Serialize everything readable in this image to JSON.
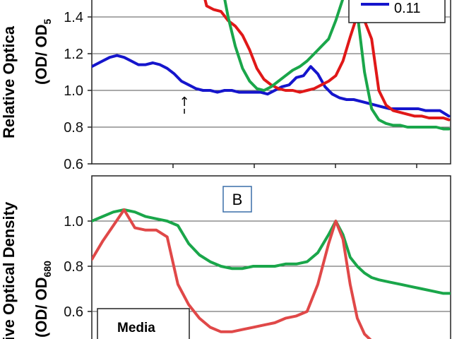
{
  "chart_data": [
    {
      "type": "line",
      "panel": "top",
      "ylabel_line1": "Relative Optica",
      "ylabel_line2": "(OD/ OD",
      "ylabel_sub": "5",
      "ylim": [
        0.6,
        1.5
      ],
      "yticks": [
        "0.6",
        "0.8",
        "1.0",
        "1.2",
        "1.4"
      ],
      "ytick_values": [
        0.6,
        0.8,
        1.0,
        1.2,
        1.4
      ],
      "xlim": [
        0,
        100
      ],
      "grid": true,
      "legend": {
        "placement": "top-right",
        "entries": [
          {
            "label": "0.11",
            "color": "#1515cc"
          }
        ]
      },
      "annotation": "↑",
      "annotation_x": 25.8,
      "series": [
        {
          "name": "0.11",
          "color": "#1515cc",
          "x": [
            0,
            3,
            5,
            7,
            9,
            11,
            13,
            15,
            17,
            19,
            21,
            23,
            25,
            27,
            29,
            31,
            33,
            35,
            37,
            39,
            41,
            43,
            45,
            47,
            49,
            51,
            53,
            55,
            57,
            59,
            61,
            63,
            65,
            67,
            69,
            71,
            73,
            75,
            77,
            79,
            81,
            83,
            85,
            87,
            89,
            91,
            93,
            95,
            97,
            99.5
          ],
          "y": [
            1.13,
            1.16,
            1.18,
            1.19,
            1.18,
            1.16,
            1.14,
            1.14,
            1.15,
            1.14,
            1.12,
            1.09,
            1.05,
            1.03,
            1.01,
            1.0,
            1.0,
            0.99,
            1.0,
            1.0,
            0.99,
            0.99,
            0.99,
            0.99,
            0.98,
            1.0,
            1.02,
            1.03,
            1.07,
            1.08,
            1.13,
            1.09,
            1.02,
            0.98,
            0.96,
            0.95,
            0.95,
            0.94,
            0.93,
            0.92,
            0.91,
            0.9,
            0.9,
            0.9,
            0.9,
            0.9,
            0.89,
            0.89,
            0.89,
            0.86
          ]
        },
        {
          "name": "",
          "color": "#e01818",
          "x": [
            0,
            0,
            31,
            31.5,
            32,
            34,
            36,
            38,
            40,
            42,
            44,
            46,
            48,
            50,
            52,
            54,
            56,
            58,
            60,
            62,
            64,
            66,
            68,
            70,
            72,
            74,
            76,
            78,
            80,
            82,
            84,
            86,
            88,
            90,
            92,
            94,
            96,
            98,
            99.5
          ],
          "y": [
            null,
            null,
            1.55,
            1.5,
            1.46,
            1.44,
            1.43,
            1.38,
            1.35,
            1.3,
            1.22,
            1.12,
            1.06,
            1.03,
            1.01,
            1.0,
            1.0,
            0.99,
            1.0,
            1.01,
            1.03,
            1.05,
            1.08,
            1.16,
            1.29,
            1.41,
            1.38,
            1.28,
            1.0,
            0.92,
            0.89,
            0.88,
            0.87,
            0.86,
            0.86,
            0.85,
            0.85,
            0.85,
            0.84
          ]
        },
        {
          "name": "",
          "color": "#1aa64a",
          "x": [
            36,
            37,
            38,
            40,
            42,
            44,
            46,
            48,
            50,
            52,
            54,
            56,
            58,
            60,
            62,
            64,
            66,
            68,
            70,
            72,
            74,
            76,
            78,
            80,
            82,
            84,
            86,
            88,
            90,
            92,
            94,
            96,
            98,
            99.5
          ],
          "y": [
            1.56,
            1.5,
            1.4,
            1.24,
            1.12,
            1.05,
            1.01,
            1.0,
            1.02,
            1.05,
            1.08,
            1.11,
            1.13,
            1.16,
            1.2,
            1.24,
            1.28,
            1.38,
            1.5,
            1.56,
            1.42,
            1.1,
            0.9,
            0.84,
            0.82,
            0.81,
            0.81,
            0.8,
            0.8,
            0.8,
            0.8,
            0.8,
            0.79,
            0.79
          ]
        }
      ]
    },
    {
      "type": "line",
      "panel": "bottom",
      "ylabel_line1": "tive Optical Density",
      "ylabel_line2": "(OD/ OD",
      "ylabel_sub": "680",
      "ylim": [
        0.45,
        1.2
      ],
      "yticks": [
        "0.6",
        "0.8",
        "1.0"
      ],
      "ytick_values": [
        0.6,
        0.8,
        1.0
      ],
      "xlim": [
        0,
        100
      ],
      "grid": true,
      "panel_label": "B",
      "legend_title": "Media",
      "series": [
        {
          "name": "",
          "color": "#1aa64a",
          "x": [
            0,
            3,
            6,
            9,
            12,
            15,
            18,
            21,
            24,
            27,
            30,
            33,
            36,
            39,
            42,
            45,
            48,
            51,
            54,
            57,
            60,
            63,
            66,
            68,
            70,
            72,
            74,
            76,
            78,
            80,
            83,
            86,
            89,
            92,
            95,
            98,
            100
          ],
          "y": [
            1.0,
            1.02,
            1.04,
            1.05,
            1.04,
            1.02,
            1.01,
            1.0,
            0.98,
            0.9,
            0.85,
            0.82,
            0.8,
            0.79,
            0.79,
            0.8,
            0.8,
            0.8,
            0.81,
            0.81,
            0.82,
            0.86,
            0.94,
            1.0,
            0.94,
            0.84,
            0.8,
            0.77,
            0.75,
            0.74,
            0.73,
            0.72,
            0.71,
            0.7,
            0.69,
            0.68,
            0.68
          ]
        },
        {
          "name": "",
          "color": "#e04848",
          "x": [
            0,
            3,
            6,
            9,
            12,
            15,
            18,
            21,
            24,
            27,
            30,
            33,
            36,
            39,
            42,
            45,
            48,
            51,
            54,
            57,
            60,
            63,
            66,
            68,
            70,
            72,
            74,
            76,
            78,
            80,
            82,
            83
          ],
          "y": [
            0.83,
            0.91,
            0.98,
            1.05,
            0.97,
            0.96,
            0.96,
            0.93,
            0.72,
            0.63,
            0.57,
            0.53,
            0.51,
            0.51,
            0.52,
            0.53,
            0.54,
            0.55,
            0.57,
            0.58,
            0.6,
            0.72,
            0.9,
            1.0,
            0.92,
            0.72,
            0.57,
            0.5,
            0.47,
            0.45,
            0.44,
            0.44
          ]
        }
      ]
    }
  ]
}
